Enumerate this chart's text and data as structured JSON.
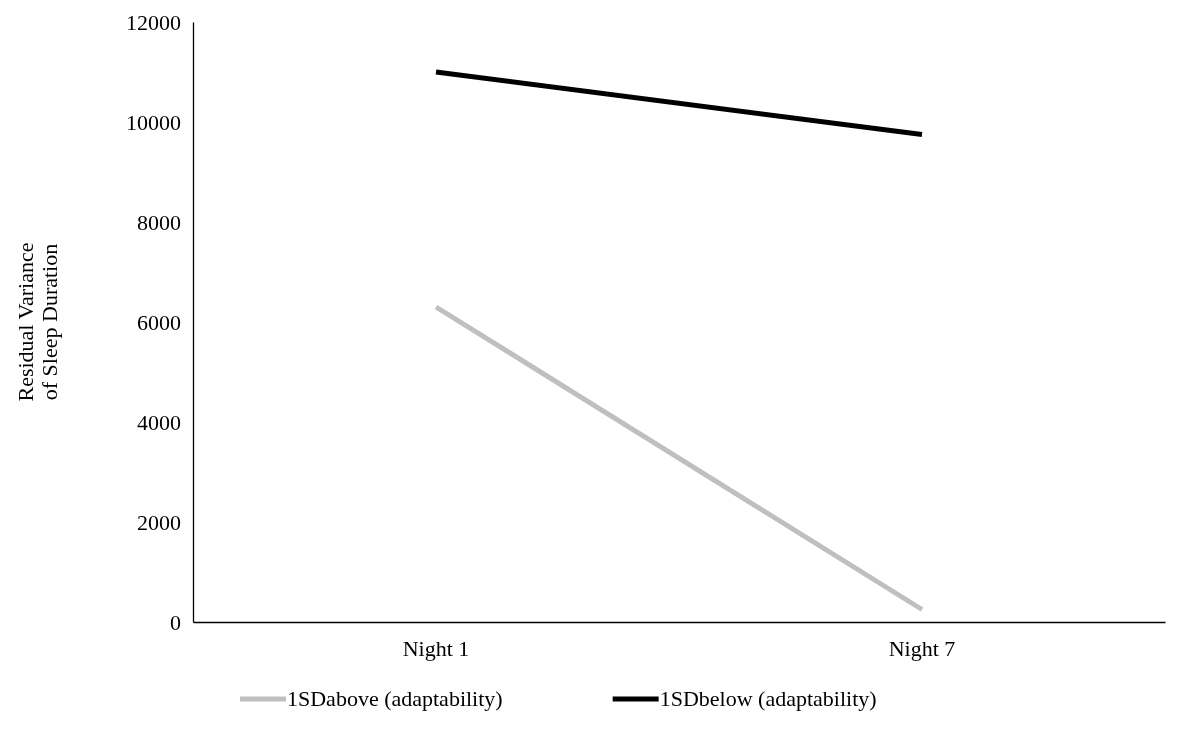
{
  "chart_data": {
    "type": "line",
    "ylabel": "Residual Variance\nof Sleep Duration",
    "categories": [
      "Night 1",
      "Night 7"
    ],
    "series": [
      {
        "name": "1SDabove (adaptability)",
        "color": "#bfbfbf",
        "values": [
          6300,
          250
        ]
      },
      {
        "name": "1SDbelow (adaptability)",
        "color": "#000000",
        "values": [
          11000,
          9750
        ]
      }
    ],
    "ylim": [
      0,
      12000
    ],
    "yticks": [
      0,
      2000,
      4000,
      6000,
      8000,
      10000,
      12000
    ],
    "grid": false,
    "legend": "bottom",
    "marker": "none",
    "line_style": "solid"
  }
}
